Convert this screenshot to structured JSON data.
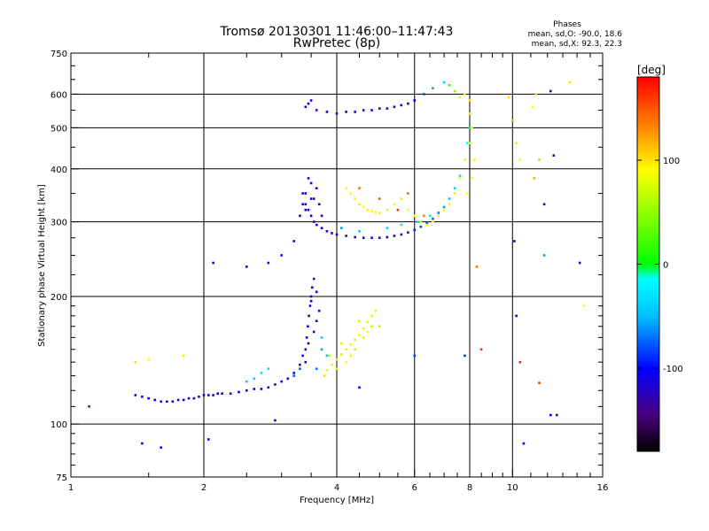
{
  "chart_data": {
    "type": "scatter",
    "title": "Tromsø 20130301 11:46:00–11:47:43",
    "subtitle": "RwPretec (8p)",
    "xlabel": "Frequency [MHz]",
    "ylabel": "Stationary phase Virtual Height [km]",
    "x_scale": "log",
    "y_scale": "log",
    "xlim": [
      1,
      16
    ],
    "ylim": [
      75,
      750
    ],
    "x_ticks": [
      1,
      2,
      4,
      6,
      8,
      10,
      16
    ],
    "y_ticks": [
      75,
      100,
      200,
      300,
      400,
      500,
      600,
      750
    ],
    "x_gridlines": [
      2,
      4,
      6,
      8,
      10
    ],
    "y_gridlines": [
      100,
      200,
      300,
      400,
      500,
      600
    ],
    "phase_stats": {
      "heading": "Phases",
      "line1": "mean, sd,O: -90.0, 18.6",
      "line2": "mean, sd,X:  92.3, 22.3"
    },
    "colorbar": {
      "label": "[deg]",
      "range": [
        -180,
        180
      ],
      "ticks": [
        100,
        0,
        -100
      ],
      "tick_labels": [
        "100",
        "0",
        "-100"
      ]
    },
    "series": [
      {
        "points": [
          [
            1.4,
            117,
            -110
          ],
          [
            1.45,
            116,
            -105
          ],
          [
            1.5,
            115,
            -115
          ],
          [
            1.55,
            114,
            -108
          ],
          [
            1.6,
            113,
            -112
          ],
          [
            1.65,
            113,
            -110
          ],
          [
            1.7,
            113,
            -118
          ],
          [
            1.75,
            114,
            -105
          ],
          [
            1.8,
            114,
            -110
          ],
          [
            1.85,
            115,
            -112
          ],
          [
            1.9,
            115,
            -108
          ],
          [
            1.95,
            116,
            -110
          ],
          [
            2.0,
            117,
            -115
          ],
          [
            2.05,
            117,
            -105
          ],
          [
            2.1,
            117,
            -110
          ],
          [
            2.15,
            118,
            -112
          ],
          [
            2.2,
            118,
            -108
          ],
          [
            2.3,
            118,
            -110
          ],
          [
            2.4,
            119,
            -105
          ],
          [
            2.5,
            120,
            -110
          ],
          [
            2.6,
            121,
            -112
          ],
          [
            2.7,
            121,
            -108
          ],
          [
            2.8,
            122,
            -110
          ],
          [
            2.9,
            124,
            -100
          ],
          [
            3.0,
            126,
            -105
          ],
          [
            3.1,
            128,
            -110
          ],
          [
            3.2,
            132,
            -115
          ],
          [
            3.3,
            138,
            -112
          ],
          [
            3.35,
            145,
            -110
          ],
          [
            3.4,
            150,
            -115
          ],
          [
            3.42,
            160,
            -110
          ],
          [
            3.44,
            170,
            -118
          ],
          [
            3.46,
            180,
            -112
          ],
          [
            3.48,
            190,
            -110
          ],
          [
            3.5,
            200,
            -115
          ],
          [
            3.52,
            210,
            -112
          ],
          [
            3.55,
            220,
            -110
          ],
          [
            3.4,
            140,
            -105
          ],
          [
            3.45,
            155,
            -108
          ],
          [
            3.55,
            165,
            -110
          ],
          [
            3.6,
            175,
            -112
          ],
          [
            3.65,
            185,
            -108
          ],
          [
            3.5,
            195,
            -110
          ],
          [
            3.6,
            205,
            -115
          ],
          [
            3.7,
            150,
            -60
          ],
          [
            3.8,
            145,
            -50
          ],
          [
            3.7,
            160,
            -40
          ],
          [
            3.6,
            135,
            -70
          ],
          [
            3.3,
            135,
            -80
          ],
          [
            3.2,
            130,
            -75
          ],
          [
            2.6,
            128,
            -40
          ],
          [
            2.7,
            132,
            -30
          ],
          [
            2.8,
            135,
            -35
          ],
          [
            2.5,
            126,
            -45
          ]
        ]
      },
      {
        "points": [
          [
            3.75,
            130,
            70
          ],
          [
            3.8,
            134,
            75
          ],
          [
            3.9,
            138,
            70
          ],
          [
            4.0,
            142,
            80
          ],
          [
            4.1,
            146,
            70
          ],
          [
            4.2,
            150,
            75
          ],
          [
            4.3,
            154,
            80
          ],
          [
            4.4,
            158,
            70
          ],
          [
            4.5,
            162,
            75
          ],
          [
            4.6,
            168,
            80
          ],
          [
            4.7,
            174,
            70
          ],
          [
            4.8,
            180,
            75
          ],
          [
            4.9,
            185,
            80
          ],
          [
            4.0,
            135,
            75
          ],
          [
            4.3,
            145,
            80
          ],
          [
            4.6,
            160,
            70
          ],
          [
            4.5,
            175,
            75
          ],
          [
            4.7,
            165,
            80
          ],
          [
            5.0,
            170,
            70
          ],
          [
            4.2,
            140,
            85
          ],
          [
            4.4,
            150,
            65
          ],
          [
            4.8,
            170,
            70
          ],
          [
            3.85,
            145,
            70
          ],
          [
            4.1,
            155,
            75
          ]
        ]
      },
      {
        "points": [
          [
            3.4,
            330,
            -110
          ],
          [
            3.45,
            320,
            -112
          ],
          [
            3.5,
            310,
            -108
          ],
          [
            3.55,
            300,
            -115
          ],
          [
            3.6,
            295,
            -110
          ],
          [
            3.7,
            290,
            -112
          ],
          [
            3.8,
            285,
            -108
          ],
          [
            3.9,
            282,
            -110
          ],
          [
            4.0,
            280,
            -115
          ],
          [
            4.2,
            278,
            -112
          ],
          [
            4.4,
            276,
            -108
          ],
          [
            4.6,
            275,
            -110
          ],
          [
            4.8,
            275,
            -112
          ],
          [
            5.0,
            275,
            -108
          ],
          [
            5.2,
            276,
            -110
          ],
          [
            5.4,
            278,
            -105
          ],
          [
            5.6,
            280,
            -100
          ],
          [
            5.8,
            283,
            -95
          ],
          [
            6.0,
            287,
            -90
          ],
          [
            6.2,
            292,
            -85
          ],
          [
            6.4,
            298,
            -80
          ],
          [
            6.6,
            305,
            -75
          ],
          [
            6.8,
            315,
            -70
          ],
          [
            7.0,
            325,
            -60
          ],
          [
            7.2,
            340,
            -50
          ],
          [
            7.4,
            360,
            -40
          ],
          [
            7.6,
            385,
            -30
          ],
          [
            7.8,
            420,
            -20
          ],
          [
            7.9,
            460,
            -15
          ],
          [
            8.0,
            500,
            -10
          ],
          [
            3.4,
            350,
            -110
          ],
          [
            3.5,
            370,
            -112
          ],
          [
            3.55,
            340,
            -108
          ],
          [
            3.6,
            360,
            -110
          ],
          [
            3.45,
            380,
            -115
          ],
          [
            3.5,
            340,
            -110
          ],
          [
            3.35,
            350,
            -112
          ],
          [
            3.4,
            320,
            -108
          ],
          [
            3.65,
            330,
            -110
          ],
          [
            3.7,
            310,
            -112
          ],
          [
            3.3,
            310,
            -105
          ],
          [
            3.35,
            330,
            -110
          ],
          [
            4.1,
            290,
            -60
          ],
          [
            4.5,
            285,
            -50
          ],
          [
            5.2,
            290,
            -40
          ],
          [
            5.6,
            295,
            -30
          ],
          [
            6.1,
            300,
            -20
          ],
          [
            6.5,
            310,
            -10
          ]
        ]
      },
      {
        "points": [
          [
            4.2,
            360,
            85
          ],
          [
            4.3,
            350,
            90
          ],
          [
            4.4,
            340,
            95
          ],
          [
            4.5,
            330,
            80
          ],
          [
            4.6,
            325,
            90
          ],
          [
            4.7,
            320,
            95
          ],
          [
            4.8,
            318,
            85
          ],
          [
            4.9,
            316,
            90
          ],
          [
            5.0,
            315,
            95
          ],
          [
            5.2,
            320,
            80
          ],
          [
            5.4,
            330,
            90
          ],
          [
            5.6,
            340,
            95
          ],
          [
            5.8,
            320,
            85
          ],
          [
            6.0,
            310,
            90
          ],
          [
            6.2,
            300,
            95
          ],
          [
            6.4,
            295,
            85
          ],
          [
            6.6,
            300,
            90
          ],
          [
            6.8,
            310,
            95
          ],
          [
            7.0,
            320,
            85
          ],
          [
            7.2,
            330,
            90
          ],
          [
            7.4,
            350,
            95
          ],
          [
            7.6,
            380,
            85
          ],
          [
            7.8,
            420,
            90
          ],
          [
            8.0,
            460,
            95
          ],
          [
            8.1,
            500,
            85
          ],
          [
            8.0,
            540,
            90
          ],
          [
            8.2,
            420,
            95
          ],
          [
            8.1,
            380,
            85
          ],
          [
            7.9,
            350,
            90
          ],
          [
            4.5,
            360,
            140
          ],
          [
            5.0,
            340,
            150
          ],
          [
            5.5,
            320,
            160
          ],
          [
            5.8,
            350,
            140
          ],
          [
            6.3,
            310,
            135
          ]
        ]
      },
      {
        "points": [
          [
            3.4,
            560,
            -120
          ],
          [
            3.45,
            570,
            -110
          ],
          [
            3.5,
            580,
            -112
          ],
          [
            3.6,
            550,
            -108
          ],
          [
            3.8,
            545,
            -110
          ],
          [
            4.0,
            540,
            -115
          ],
          [
            4.2,
            545,
            -105
          ],
          [
            4.4,
            545,
            -110
          ],
          [
            4.6,
            550,
            -112
          ],
          [
            4.8,
            550,
            -108
          ],
          [
            5.0,
            555,
            -110
          ],
          [
            5.2,
            555,
            -105
          ],
          [
            5.4,
            560,
            -112
          ],
          [
            5.6,
            565,
            -108
          ],
          [
            5.8,
            570,
            -110
          ],
          [
            6.0,
            580,
            -112
          ],
          [
            6.3,
            600,
            -80
          ],
          [
            6.6,
            620,
            -60
          ],
          [
            7.0,
            640,
            -40
          ],
          [
            7.2,
            630,
            20
          ],
          [
            7.4,
            610,
            40
          ],
          [
            7.6,
            590,
            80
          ],
          [
            7.8,
            600,
            90
          ],
          [
            8.0,
            580,
            100
          ]
        ]
      },
      {
        "points": [
          [
            1.1,
            110,
            -90
          ],
          [
            1.45,
            90,
            -100
          ],
          [
            1.6,
            88,
            -110
          ],
          [
            1.4,
            140,
            100
          ],
          [
            1.5,
            142,
            90
          ],
          [
            1.8,
            145,
            95
          ],
          [
            2.05,
            92,
            -110
          ],
          [
            2.1,
            240,
            -100
          ],
          [
            2.5,
            235,
            -110
          ],
          [
            2.8,
            240,
            -105
          ],
          [
            3.0,
            250,
            -100
          ],
          [
            3.2,
            270,
            -110
          ],
          [
            2.9,
            102,
            -110
          ],
          [
            4.5,
            122,
            -100
          ],
          [
            6.0,
            145,
            -80
          ],
          [
            7.8,
            145,
            -90
          ],
          [
            8.3,
            235,
            140
          ],
          [
            8.5,
            150,
            160
          ],
          [
            9.8,
            590,
            100
          ],
          [
            10.0,
            520,
            110
          ],
          [
            10.2,
            460,
            95
          ],
          [
            10.4,
            420,
            90
          ],
          [
            10.1,
            270,
            -110
          ],
          [
            10.2,
            180,
            -100
          ],
          [
            10.4,
            140,
            170
          ],
          [
            11.3,
            600,
            100
          ],
          [
            11.1,
            560,
            90
          ],
          [
            11.5,
            420,
            110
          ],
          [
            11.2,
            380,
            120
          ],
          [
            11.8,
            330,
            -100
          ],
          [
            12.2,
            610,
            -130
          ],
          [
            12.4,
            430,
            -120
          ],
          [
            12.2,
            105,
            -110
          ],
          [
            12.6,
            105,
            -115
          ],
          [
            13.5,
            640,
            100
          ],
          [
            14.2,
            240,
            -110
          ],
          [
            14.5,
            190,
            90
          ],
          [
            11.5,
            125,
            160
          ],
          [
            10.6,
            90,
            -100
          ],
          [
            11.8,
            250,
            -60
          ]
        ]
      }
    ]
  }
}
